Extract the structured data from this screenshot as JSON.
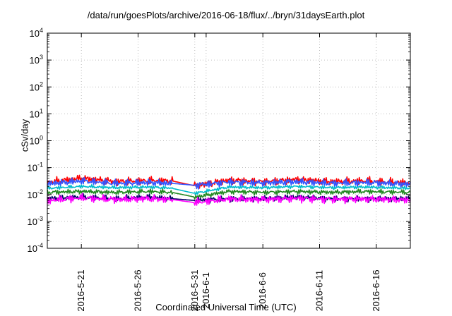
{
  "chart_data": {
    "type": "line",
    "title": "/data/run/goesPlots/archive/2016-06-18/flux/../bryn/31daysEarth.plot",
    "xlabel": "Coordinated Universal Time (UTC)",
    "ylabel": "cSv/day",
    "y_scale": "log",
    "ylim": [
      0.0001,
      10000
    ],
    "xlim": [
      "2016-05-18",
      "2016-06-19"
    ],
    "grid": true,
    "legend": "none",
    "y_ticks": [
      {
        "value": 0.0001,
        "base": "10",
        "exp": "-4"
      },
      {
        "value": 0.001,
        "base": "10",
        "exp": "-3"
      },
      {
        "value": 0.01,
        "base": "10",
        "exp": "-2"
      },
      {
        "value": 0.1,
        "base": "10",
        "exp": "-1"
      },
      {
        "value": 1,
        "base": "10",
        "exp": "0"
      },
      {
        "value": 10,
        "base": "10",
        "exp": "1"
      },
      {
        "value": 100,
        "base": "10",
        "exp": "2"
      },
      {
        "value": 1000,
        "base": "10",
        "exp": "3"
      },
      {
        "value": 10000,
        "base": "10",
        "exp": "4"
      }
    ],
    "x_ticks": [
      {
        "date": "2016-05-21",
        "label": "2016-5-21"
      },
      {
        "date": "2016-05-26",
        "label": "2016-5-26"
      },
      {
        "date": "2016-05-31",
        "label": "2016-5-31"
      },
      {
        "date": "2016-06-01",
        "label": "2016-6-1"
      },
      {
        "date": "2016-06-06",
        "label": "2016-6-6"
      },
      {
        "date": "2016-06-11",
        "label": "2016-6-11"
      },
      {
        "date": "2016-06-16",
        "label": "2016-6-16"
      }
    ],
    "data_gap": [
      "2016-05-29",
      "2016-05-31"
    ],
    "series": [
      {
        "color": "#ff0000",
        "points": [
          [
            "2016-05-18",
            0.028
          ],
          [
            "2016-05-21",
            0.04
          ],
          [
            "2016-05-24",
            0.03
          ],
          [
            "2016-05-27",
            0.033
          ],
          [
            "2016-05-29",
            0.032
          ],
          [
            "2016-05-31",
            0.021
          ],
          [
            "2016-06-03",
            0.034
          ],
          [
            "2016-06-06",
            0.03
          ],
          [
            "2016-06-09",
            0.036
          ],
          [
            "2016-06-12",
            0.03
          ],
          [
            "2016-06-15",
            0.032
          ],
          [
            "2016-06-19",
            0.027
          ]
        ]
      },
      {
        "color": "#3355ff",
        "points": [
          [
            "2016-05-18",
            0.025
          ],
          [
            "2016-05-21",
            0.032
          ],
          [
            "2016-05-24",
            0.026
          ],
          [
            "2016-05-27",
            0.028
          ],
          [
            "2016-05-29",
            0.026
          ],
          [
            "2016-05-31",
            0.022
          ],
          [
            "2016-06-03",
            0.029
          ],
          [
            "2016-06-06",
            0.027
          ],
          [
            "2016-06-09",
            0.03
          ],
          [
            "2016-06-12",
            0.026
          ],
          [
            "2016-06-15",
            0.028
          ],
          [
            "2016-06-19",
            0.024
          ]
        ]
      },
      {
        "color": "#00bbcc",
        "points": [
          [
            "2016-05-18",
            0.017
          ],
          [
            "2016-05-21",
            0.02
          ],
          [
            "2016-05-24",
            0.018
          ],
          [
            "2016-05-27",
            0.019
          ],
          [
            "2016-05-29",
            0.017
          ],
          [
            "2016-05-31",
            0.011
          ],
          [
            "2016-06-03",
            0.019
          ],
          [
            "2016-06-06",
            0.018
          ],
          [
            "2016-06-09",
            0.02
          ],
          [
            "2016-06-12",
            0.018
          ],
          [
            "2016-06-15",
            0.019
          ],
          [
            "2016-06-19",
            0.017
          ]
        ]
      },
      {
        "color": "#228822",
        "points": [
          [
            "2016-05-18",
            0.012
          ],
          [
            "2016-05-21",
            0.013
          ],
          [
            "2016-05-24",
            0.012
          ],
          [
            "2016-05-27",
            0.013
          ],
          [
            "2016-05-29",
            0.012
          ],
          [
            "2016-05-31",
            0.008
          ],
          [
            "2016-06-03",
            0.013
          ],
          [
            "2016-06-06",
            0.012
          ],
          [
            "2016-06-09",
            0.013
          ],
          [
            "2016-06-12",
            0.012
          ],
          [
            "2016-06-15",
            0.013
          ],
          [
            "2016-06-19",
            0.012
          ]
        ]
      },
      {
        "color": "#000066",
        "points": [
          [
            "2016-05-18",
            0.007
          ],
          [
            "2016-05-21",
            0.008
          ],
          [
            "2016-05-24",
            0.007
          ],
          [
            "2016-05-27",
            0.008
          ],
          [
            "2016-05-29",
            0.007
          ],
          [
            "2016-05-31",
            0.006
          ],
          [
            "2016-06-03",
            0.007
          ],
          [
            "2016-06-06",
            0.007
          ],
          [
            "2016-06-09",
            0.008
          ],
          [
            "2016-06-12",
            0.007
          ],
          [
            "2016-06-15",
            0.007
          ],
          [
            "2016-06-19",
            0.007
          ]
        ]
      },
      {
        "color": "#ff00ff",
        "points": [
          [
            "2016-05-18",
            0.006
          ],
          [
            "2016-05-21",
            0.0075
          ],
          [
            "2016-05-24",
            0.0065
          ],
          [
            "2016-05-27",
            0.007
          ],
          [
            "2016-05-29",
            0.0065
          ],
          [
            "2016-05-31",
            0.005
          ],
          [
            "2016-06-03",
            0.0068
          ],
          [
            "2016-06-06",
            0.0065
          ],
          [
            "2016-06-09",
            0.0072
          ],
          [
            "2016-06-12",
            0.0066
          ],
          [
            "2016-06-15",
            0.0068
          ],
          [
            "2016-06-19",
            0.0062
          ]
        ]
      }
    ]
  }
}
